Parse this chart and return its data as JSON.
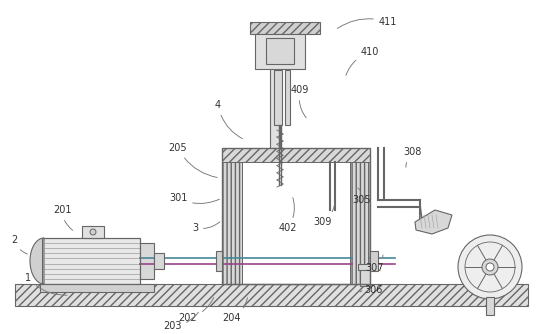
{
  "figure_size": [
    5.43,
    3.34
  ],
  "dpi": 100,
  "bg_color": "#ffffff",
  "line_color": "#666666",
  "labels_data": [
    [
      "1",
      28,
      278,
      70,
      295
    ],
    [
      "2",
      14,
      240,
      30,
      255
    ],
    [
      "201",
      62,
      210,
      75,
      232
    ],
    [
      "202",
      188,
      318,
      215,
      295
    ],
    [
      "203",
      172,
      326,
      200,
      310
    ],
    [
      "204",
      232,
      318,
      248,
      295
    ],
    [
      "205",
      178,
      148,
      220,
      178
    ],
    [
      "3",
      195,
      228,
      222,
      220
    ],
    [
      "301",
      178,
      198,
      222,
      198
    ],
    [
      "305",
      362,
      200,
      358,
      188
    ],
    [
      "306",
      374,
      290,
      360,
      292
    ],
    [
      "307",
      375,
      268,
      383,
      255
    ],
    [
      "308",
      413,
      152,
      406,
      170
    ],
    [
      "309",
      323,
      222,
      335,
      200
    ],
    [
      "4",
      218,
      105,
      245,
      140
    ],
    [
      "402",
      288,
      228,
      292,
      195
    ],
    [
      "409",
      300,
      90,
      308,
      120
    ],
    [
      "410",
      370,
      52,
      345,
      78
    ],
    [
      "411",
      388,
      22,
      335,
      30
    ]
  ]
}
